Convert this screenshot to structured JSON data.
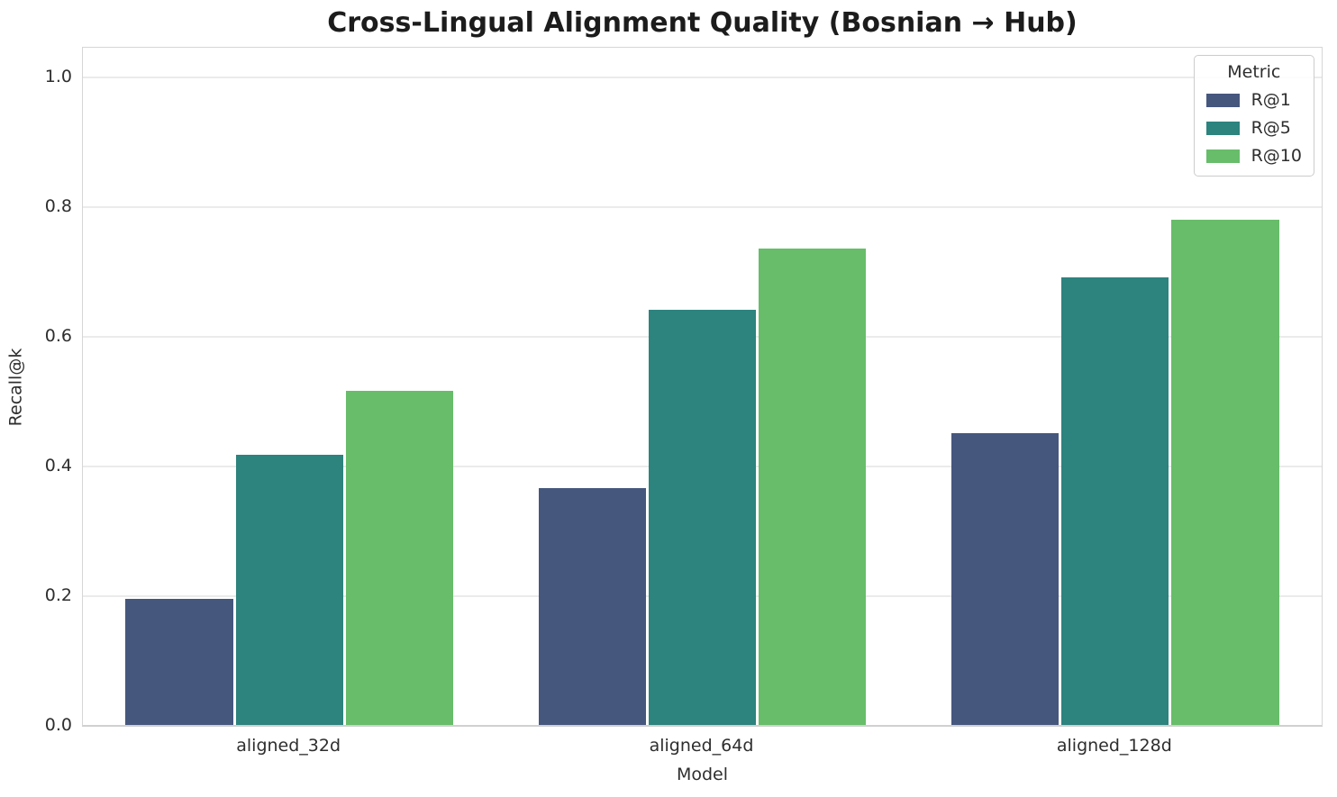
{
  "chart_data": {
    "type": "bar",
    "title": "Cross-Lingual Alignment Quality (Bosnian → Hub)",
    "xlabel": "Model",
    "ylabel": "Recall@k",
    "categories": [
      "aligned_32d",
      "aligned_64d",
      "aligned_128d"
    ],
    "series": [
      {
        "name": "R@1",
        "color": "#46577e",
        "values": [
          0.195,
          0.365,
          0.45
        ]
      },
      {
        "name": "R@5",
        "color": "#2d837e",
        "values": [
          0.417,
          0.64,
          0.69
        ]
      },
      {
        "name": "R@10",
        "color": "#67bd6a",
        "values": [
          0.515,
          0.735,
          0.78
        ]
      }
    ],
    "legend": {
      "title": "Metric",
      "position": "upper right"
    },
    "ylim": [
      0,
      1.046
    ],
    "yticks": [
      "0.0",
      "0.2",
      "0.4",
      "0.6",
      "0.8",
      "1.0"
    ],
    "grid": true,
    "group_width_fraction": 0.8
  }
}
